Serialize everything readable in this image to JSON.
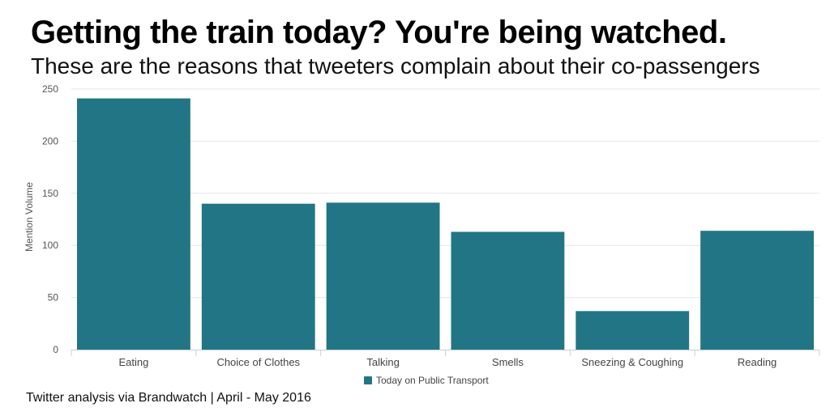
{
  "chart_data": {
    "type": "bar",
    "title": "Getting the train today? You're being watched.",
    "subtitle": "These are the reasons that tweeters complain about their co-passengers",
    "categories": [
      "Eating",
      "Choice of Clothes",
      "Talking",
      "Smells",
      "Sneezing & Coughing",
      "Reading"
    ],
    "series": [
      {
        "name": "Today on Public Transport",
        "values": [
          241,
          140,
          141,
          113,
          37,
          114
        ]
      }
    ],
    "xlabel": "",
    "ylabel": "Mention Volume",
    "ylim": [
      0,
      250
    ],
    "yticks": [
      0,
      50,
      100,
      150,
      200,
      250
    ],
    "grid": true,
    "legend_position": "bottom-center",
    "bar_color": "#227585",
    "source": "Twitter analysis via Brandwatch | April - May 2016"
  }
}
